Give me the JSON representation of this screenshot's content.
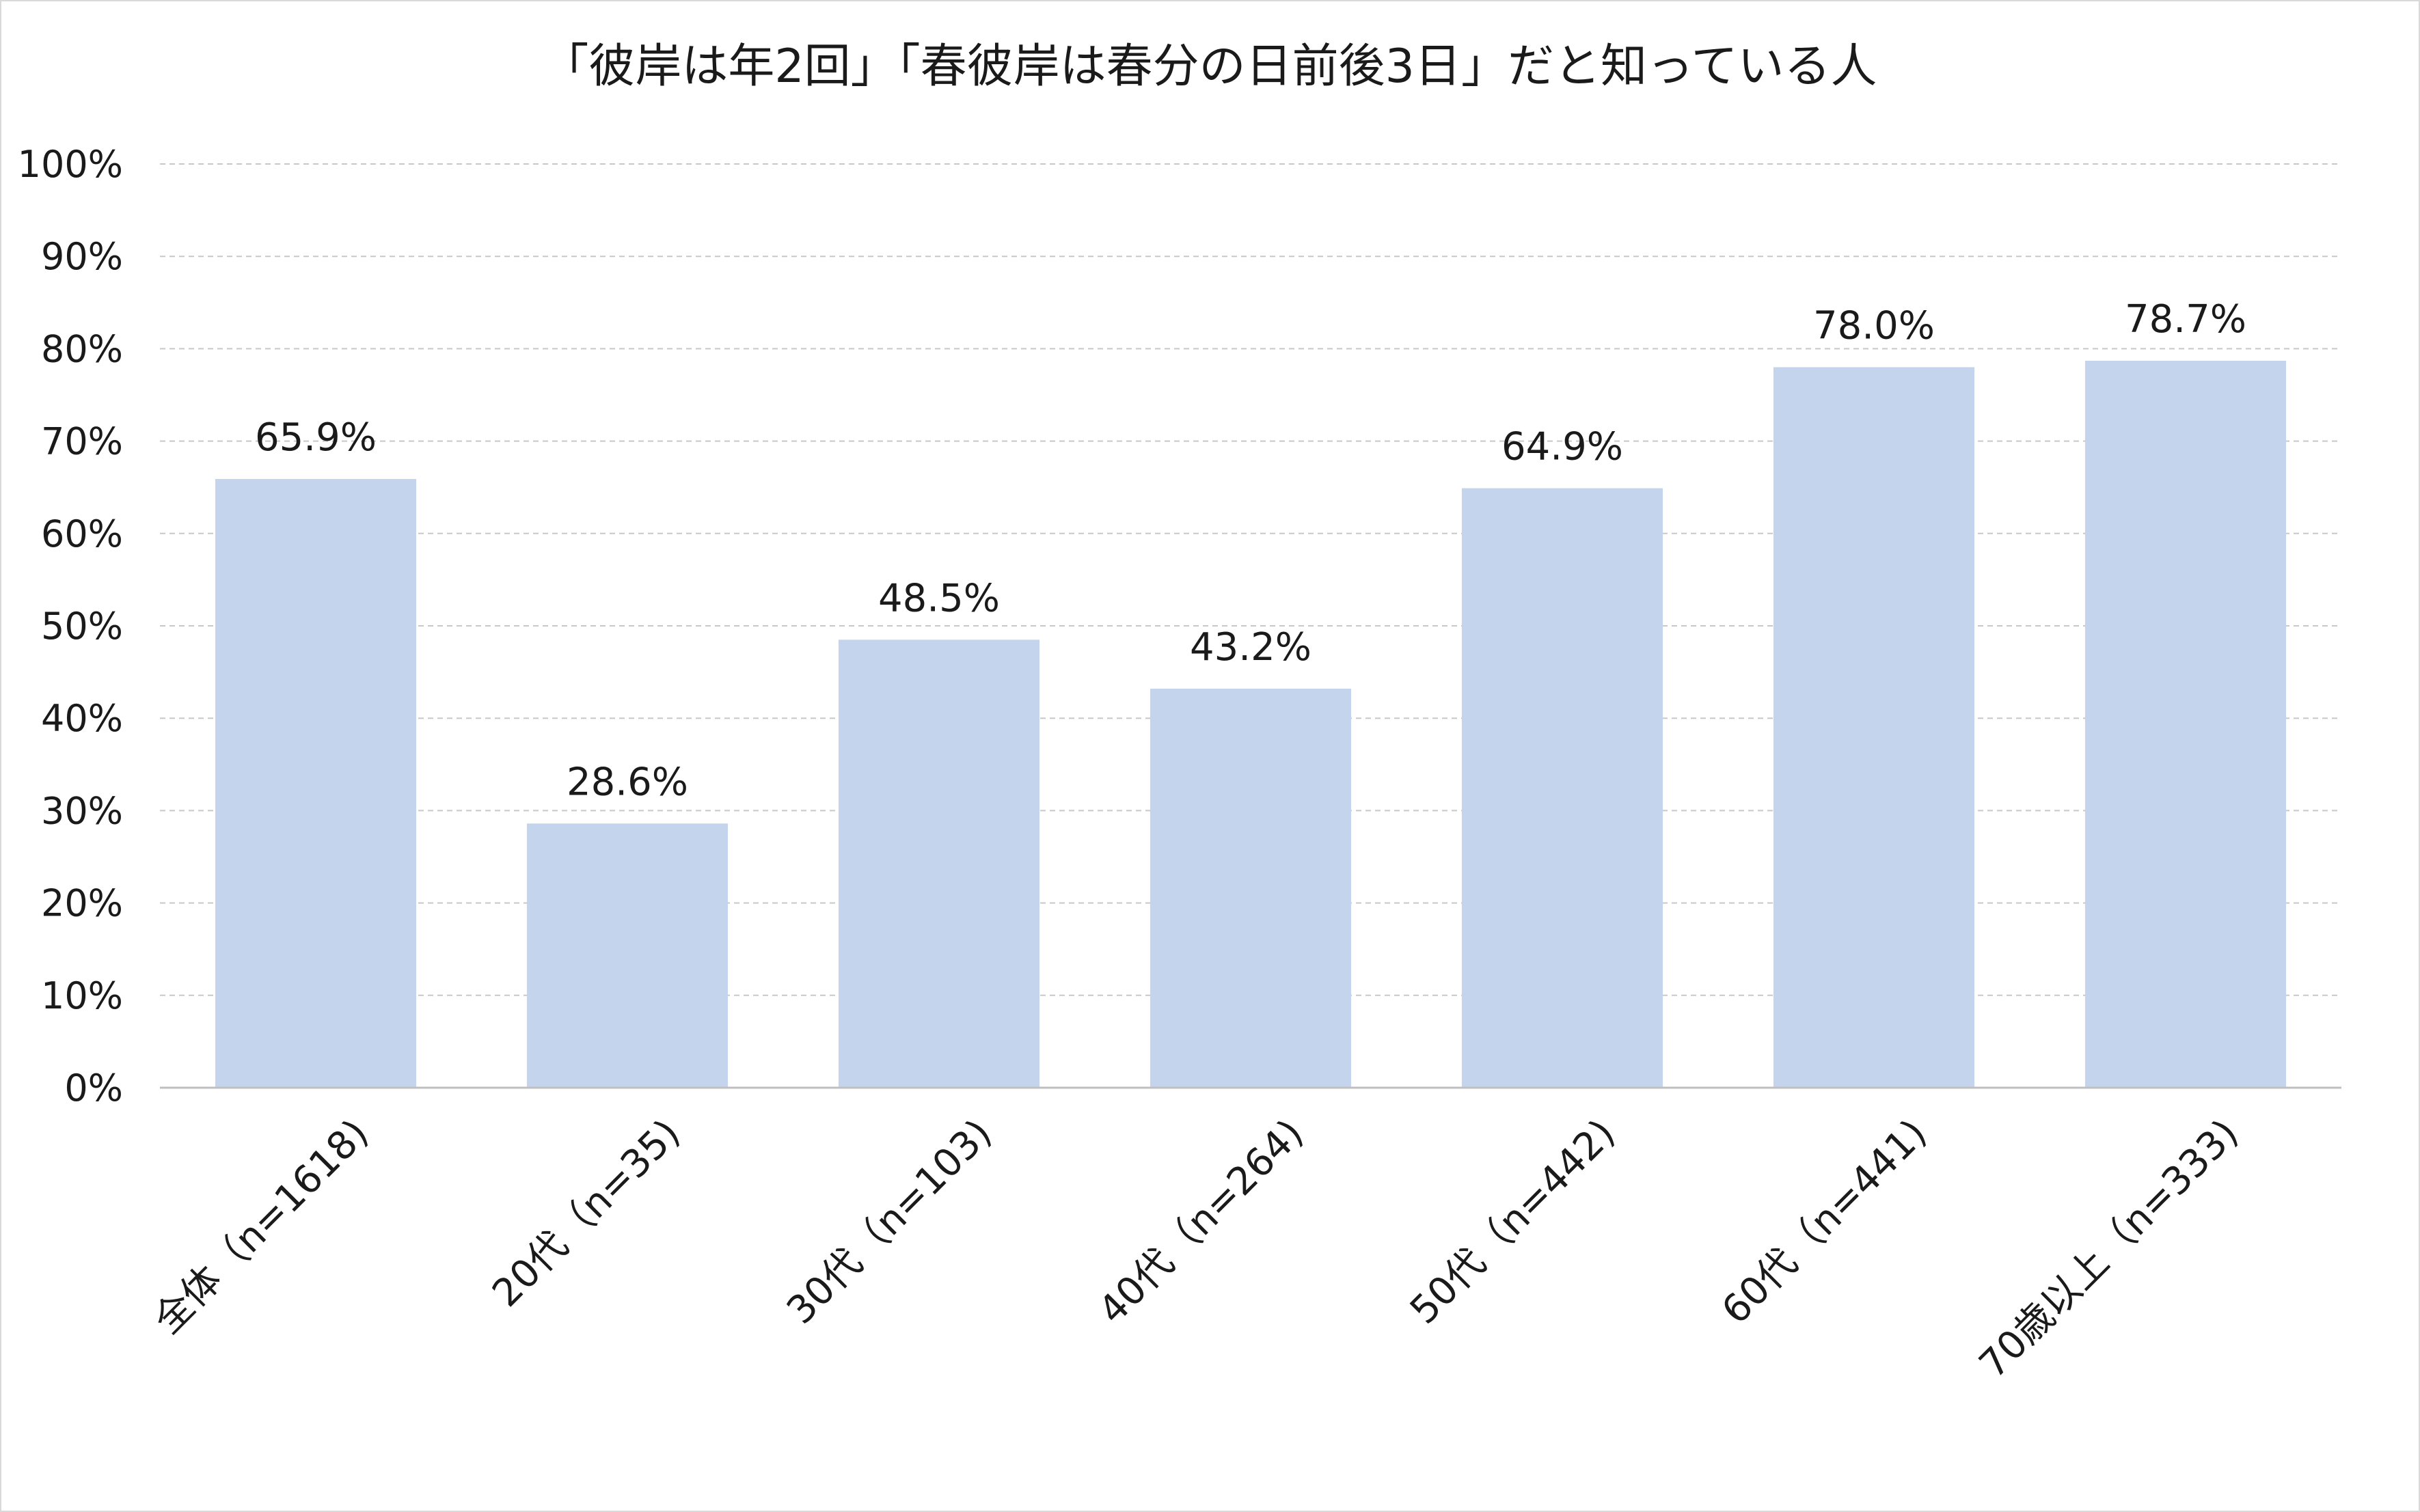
{
  "chart_data": {
    "type": "bar",
    "title": "「彼岸は年2回」「春彼岸は春分の日前後3日」だと知っている人",
    "categories": [
      "全体（n=1618)",
      "20代（n=35)",
      "30代（n=103)",
      "40代（n=264)",
      "50代（n=442)",
      "60代（n=441)",
      "70歳以上（n=333)"
    ],
    "values": [
      65.9,
      28.6,
      48.5,
      43.2,
      64.9,
      78.0,
      78.7
    ],
    "data_labels": [
      "65.9%",
      "28.6%",
      "48.5%",
      "43.2%",
      "64.9%",
      "78.0%",
      "78.7%"
    ],
    "ylim": [
      0,
      100
    ],
    "yticks": [
      0,
      10,
      20,
      30,
      40,
      50,
      60,
      70,
      80,
      90,
      100
    ],
    "ytick_labels": [
      "0%",
      "10%",
      "20%",
      "30%",
      "40%",
      "50%",
      "60%",
      "70%",
      "80%",
      "90%",
      "100%"
    ],
    "xlabel": "",
    "ylabel": "",
    "grid": true,
    "legend": "none",
    "bar_color": "#c5d4ed"
  }
}
